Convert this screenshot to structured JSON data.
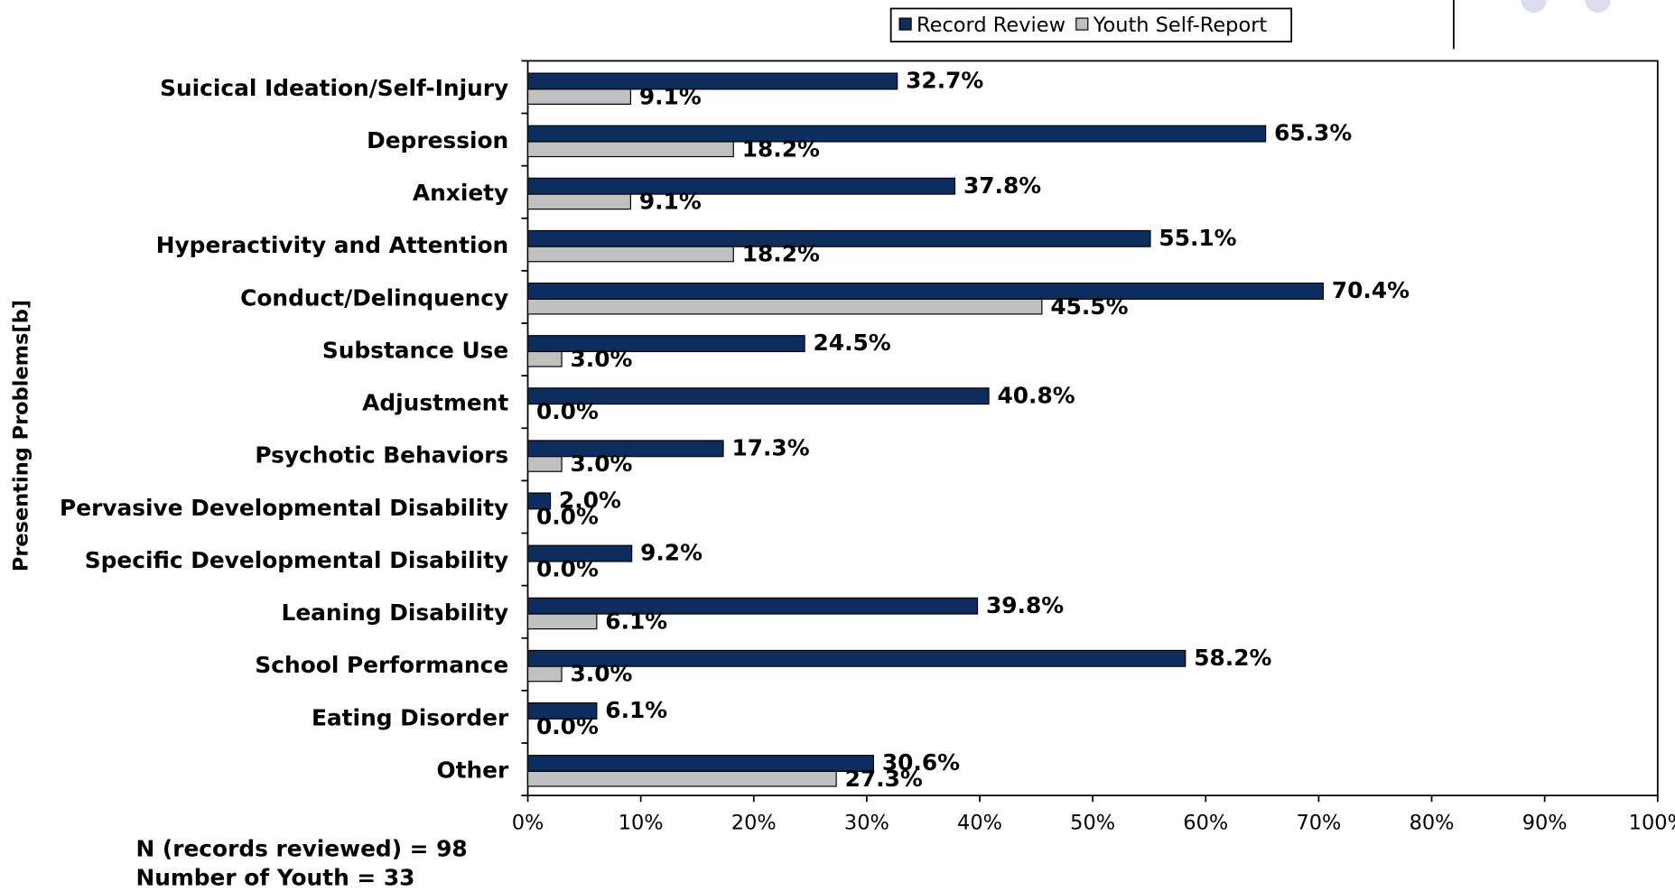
{
  "chart_data": {
    "type": "barh",
    "y_label": "Presenting Problems[b]",
    "categories": [
      "Suicical Ideation/Self-Injury",
      "Depression",
      "Anxiety",
      "Hyperactivity and Attention",
      "Conduct/Delinquency",
      "Substance Use",
      "Adjustment",
      "Psychotic Behaviors",
      "Pervasive Developmental Disability",
      "Specific Developmental Disability",
      "Leaning Disability",
      "School Performance",
      "Eating Disorder",
      "Other"
    ],
    "series": [
      {
        "name": "Record Review",
        "color": "#0d2d5e",
        "values": [
          32.7,
          65.3,
          37.8,
          55.1,
          70.4,
          24.5,
          40.8,
          17.3,
          2.0,
          9.2,
          39.8,
          58.2,
          6.1,
          30.6
        ],
        "value_labels": [
          "32.7%",
          "65.3%",
          "37.8%",
          "55.1%",
          "70.4%",
          "24.5%",
          "40.8%",
          "17.3%",
          "2.0%",
          "9.2%",
          "39.8%",
          "58.2%",
          "6.1%",
          "30.6%"
        ]
      },
      {
        "name": "Youth Self-Report",
        "color": "#c0c0c0",
        "values": [
          9.1,
          18.2,
          9.1,
          18.2,
          45.5,
          3.0,
          0.0,
          3.0,
          0.0,
          0.0,
          6.1,
          3.0,
          0.0,
          27.3
        ],
        "value_labels": [
          "9.1%",
          "18.2%",
          "9.1%",
          "18.2%",
          "45.5%",
          "3.0%",
          "0.0%",
          "3.0%",
          "0.0%",
          "0.0%",
          "6.1%",
          "3.0%",
          "0.0%",
          "27.3%"
        ]
      }
    ],
    "xlim": [
      0,
      100
    ],
    "xticks": [
      {
        "value": 0,
        "label": "0%"
      },
      {
        "value": 10,
        "label": "10%"
      },
      {
        "value": 20,
        "label": "20%"
      },
      {
        "value": 30,
        "label": "30%"
      },
      {
        "value": 40,
        "label": "40%"
      },
      {
        "value": 50,
        "label": "50%"
      },
      {
        "value": 60,
        "label": "60%"
      },
      {
        "value": 70,
        "label": "70%"
      },
      {
        "value": 80,
        "label": "80%"
      },
      {
        "value": 90,
        "label": "90%"
      },
      {
        "value": 100,
        "label": "100%"
      }
    ],
    "legend": "top",
    "notes": [
      "N (records reviewed) = 98",
      "Number of Youth = 33"
    ]
  }
}
